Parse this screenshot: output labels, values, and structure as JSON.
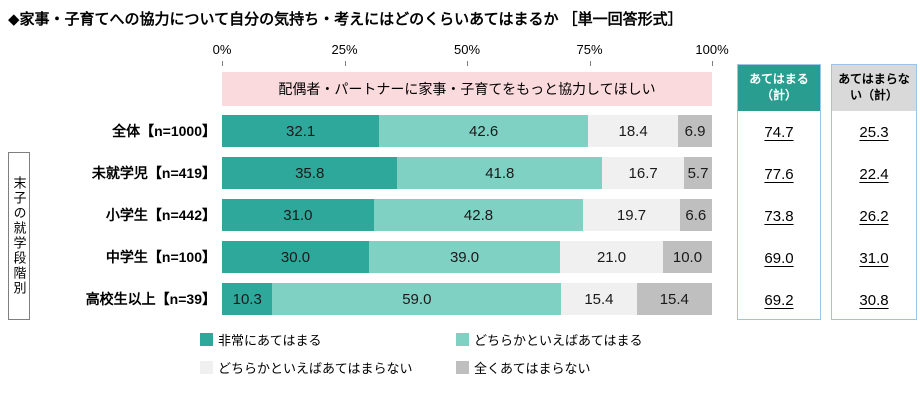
{
  "title": "◆家事・子育てへの協力について自分の気持ち・考えにはどのくらいあてはまるか ［単一回答形式］",
  "banner": {
    "text": "配偶者・パートナーに家事・子育てをもっと協力してほしい",
    "bg": "#FBDADD"
  },
  "group_label": "末子の就学段階別",
  "axis": {
    "ticks": [
      {
        "label": "0%",
        "pct": 0
      },
      {
        "label": "25%",
        "pct": 25
      },
      {
        "label": "50%",
        "pct": 50
      },
      {
        "label": "75%",
        "pct": 75
      },
      {
        "label": "100%",
        "pct": 100
      }
    ]
  },
  "chart_data": {
    "type": "bar",
    "orientation": "horizontal",
    "stacked": true,
    "xlim": [
      0,
      100
    ],
    "title": "家事・子育てへの協力について自分の気持ち・考えにはどのくらいあてはまるか",
    "statement": "配偶者・パートナーに家事・子育てをもっと協力してほしい",
    "categories": [
      "全体【n=1000】",
      "未就学児【n=419】",
      "小学生【n=442】",
      "中学生【n=100】",
      "高校生以上【n=39】"
    ],
    "series": [
      {
        "name": "非常にあてはまる",
        "color": "#2EA89A",
        "values": [
          32.1,
          35.8,
          31.0,
          30.0,
          10.3
        ]
      },
      {
        "name": "どちらかといえばあてはまる",
        "color": "#7FD1C4",
        "values": [
          42.6,
          41.8,
          42.8,
          39.0,
          59.0
        ]
      },
      {
        "name": "どちらかといえばあてはまらない",
        "color": "#F0F0F0",
        "values": [
          18.4,
          16.7,
          19.7,
          21.0,
          15.4
        ]
      },
      {
        "name": "全くあてはまらない",
        "color": "#BFBFBF",
        "values": [
          6.9,
          5.7,
          6.6,
          10.0,
          15.4
        ]
      }
    ],
    "summary_columns": [
      {
        "label_lines": [
          "あてはまる",
          "（計）"
        ],
        "header_bg": "#299E90",
        "header_text": "#FFFFFF",
        "border": "#9DC3E6",
        "values": [
          74.7,
          77.6,
          73.8,
          69.0,
          69.2
        ]
      },
      {
        "label_lines": [
          "あてはまらな",
          "い（計）"
        ],
        "header_bg": "#D9D9D9",
        "header_text": "#000000",
        "border": "#9DC3E6",
        "values": [
          25.3,
          22.4,
          26.2,
          31.0,
          30.8
        ]
      }
    ],
    "legend_position": "bottom"
  }
}
